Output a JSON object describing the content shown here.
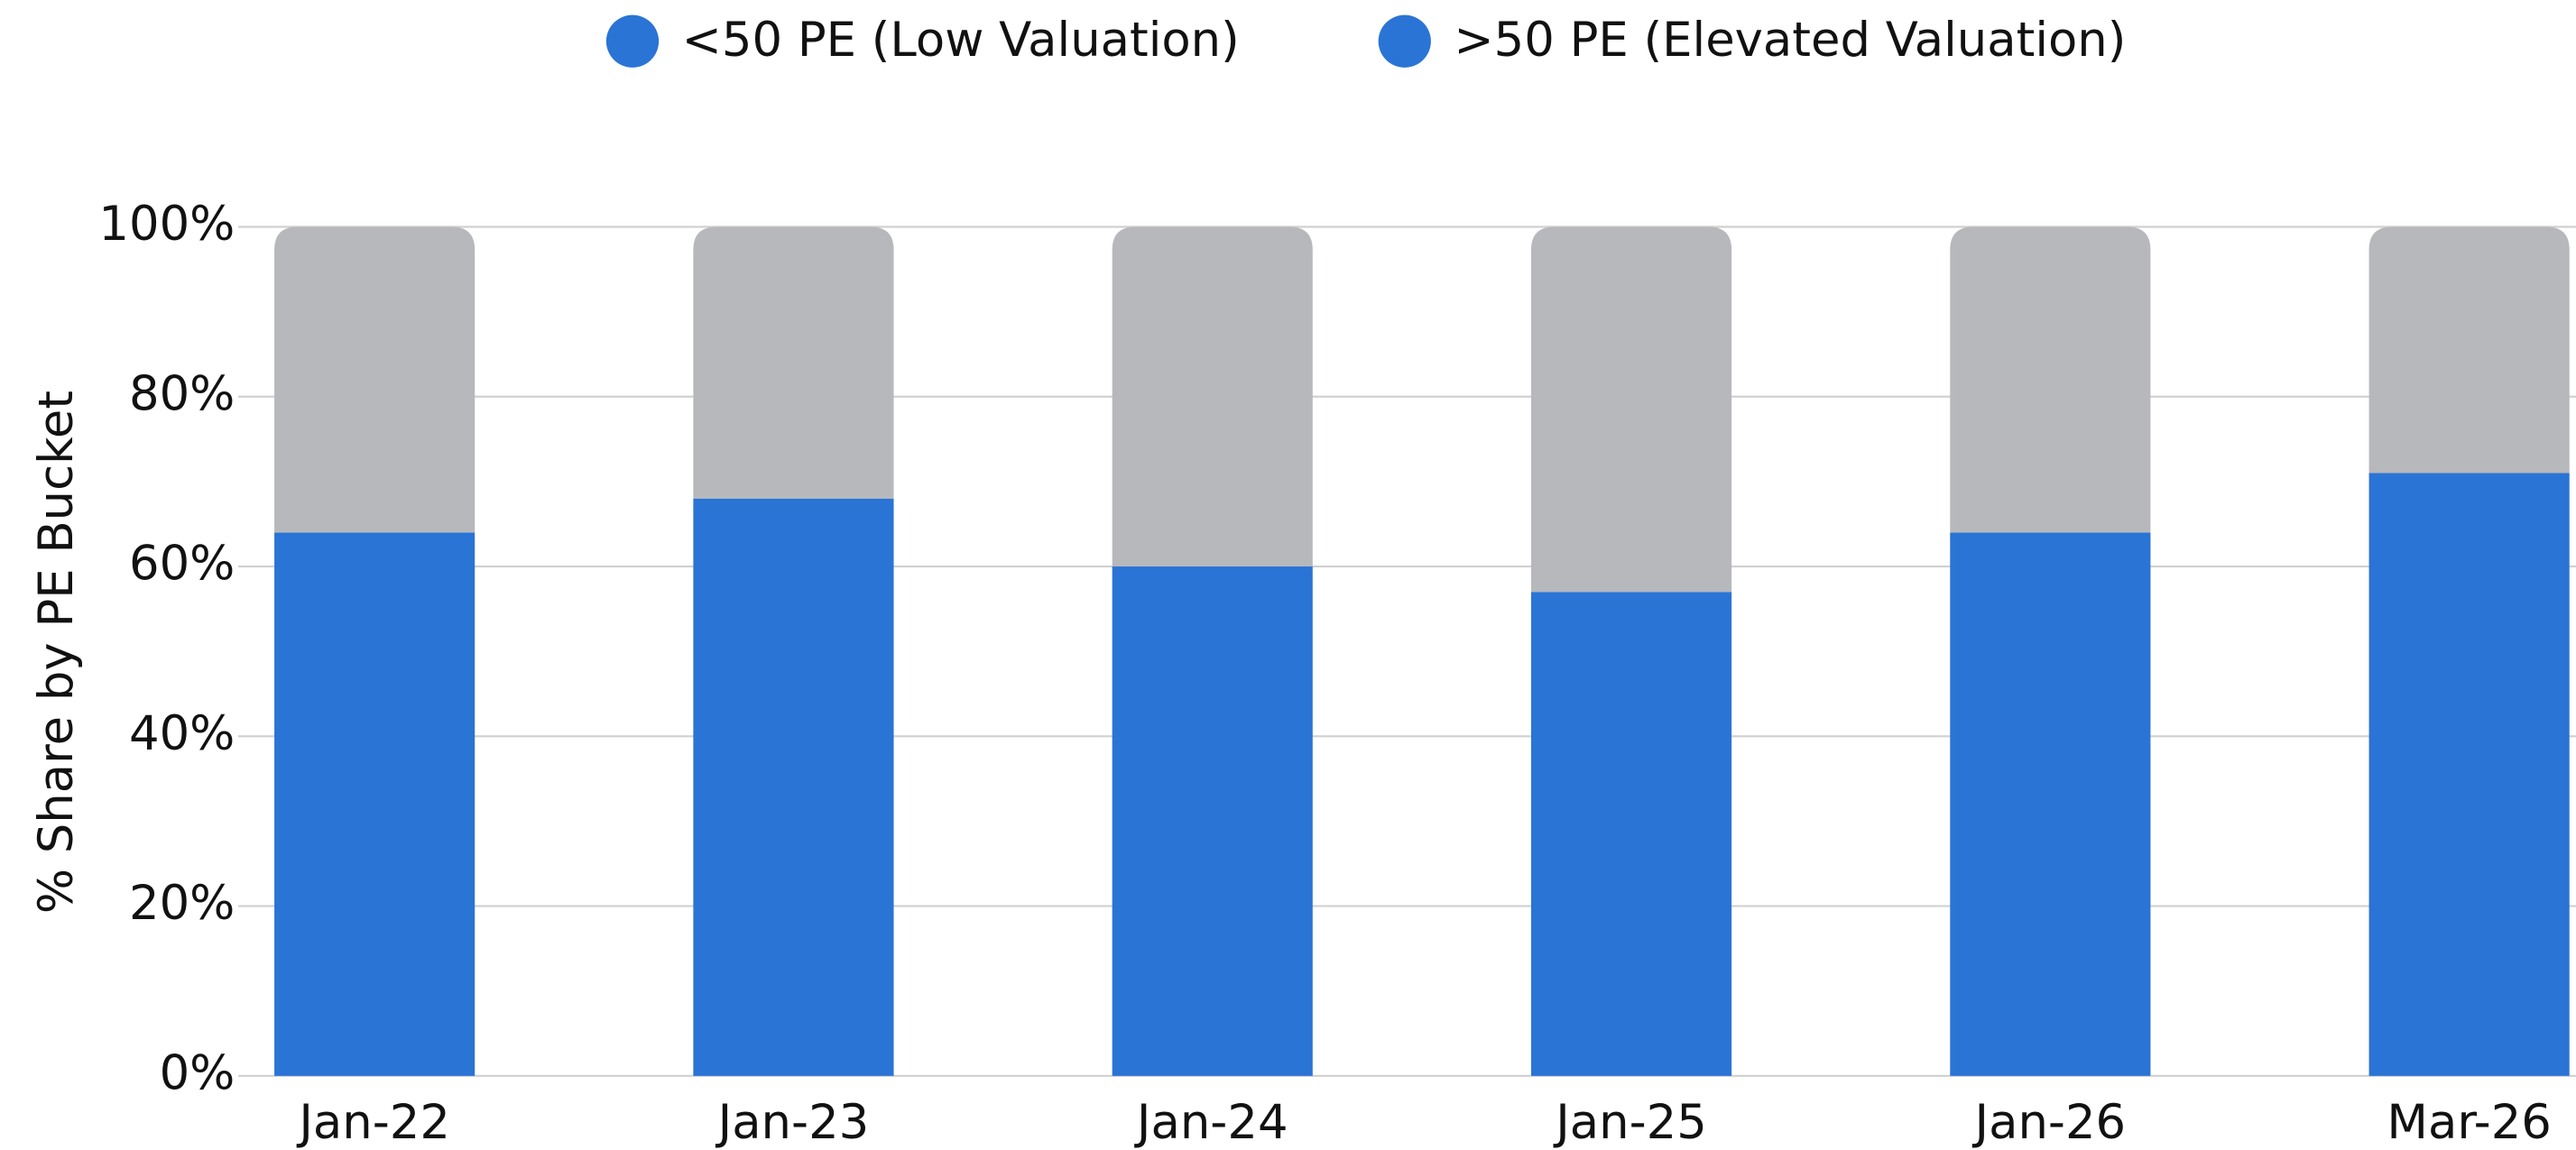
{
  "chart_data": {
    "type": "stacked_bar",
    "y_label": "% Share by PE Bucket",
    "categories": [
      "Jan-22",
      "Jan-23",
      "Jan-24",
      "Jan-25",
      "Jan-26",
      "Mar-26"
    ],
    "series": [
      {
        "name": "<50 PE (Low Valuation)",
        "color": "#2a74d5",
        "values": [
          64,
          68,
          60,
          57,
          64,
          71
        ]
      },
      {
        "name": ">50 PE (Elevated Valuation)",
        "color": "#b7b8bc",
        "values": [
          36,
          32,
          40,
          43,
          36,
          29
        ]
      }
    ],
    "legend_marker_color": "#2a74d5",
    "legend_position": "top",
    "ylim": [
      0,
      100
    ],
    "yticks": [
      {
        "value": 0,
        "label": "0%"
      },
      {
        "value": 20,
        "label": "20%"
      },
      {
        "value": 40,
        "label": "40%"
      },
      {
        "value": 60,
        "label": "60%"
      },
      {
        "value": 80,
        "label": "80%"
      },
      {
        "value": 100,
        "label": "100%"
      }
    ],
    "grid": true
  }
}
